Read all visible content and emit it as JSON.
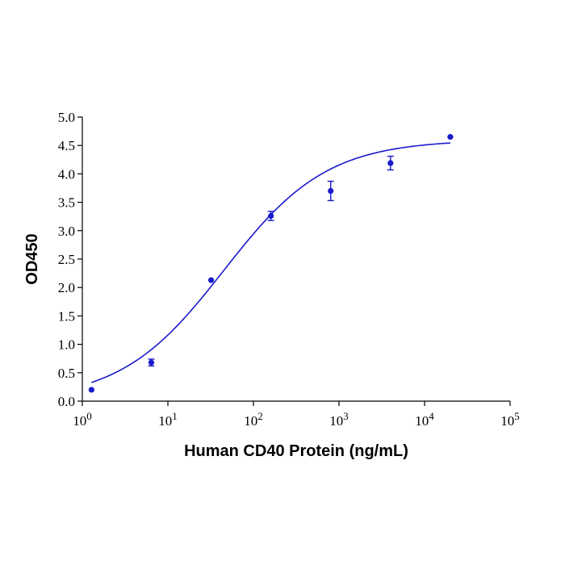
{
  "chart_data": {
    "type": "scatter",
    "xlabel": "Human CD40 Protein (ng/mL)",
    "ylabel": "OD450",
    "xscale": "log",
    "xlim": [
      1,
      100000
    ],
    "ylim": [
      0,
      5.0
    ],
    "x_ticks": [
      {
        "value": 1,
        "base": "10",
        "exp": "0"
      },
      {
        "value": 10,
        "base": "10",
        "exp": "1"
      },
      {
        "value": 100,
        "base": "10",
        "exp": "2"
      },
      {
        "value": 1000,
        "base": "10",
        "exp": "3"
      },
      {
        "value": 10000,
        "base": "10",
        "exp": "4"
      },
      {
        "value": 100000,
        "base": "10",
        "exp": "5"
      }
    ],
    "y_ticks": [
      {
        "value": 0,
        "label": "0.0"
      },
      {
        "value": 0.5,
        "label": "0.5"
      },
      {
        "value": 1.0,
        "label": "1.0"
      },
      {
        "value": 1.5,
        "label": "1.5"
      },
      {
        "value": 2.0,
        "label": "2.0"
      },
      {
        "value": 2.5,
        "label": "2.5"
      },
      {
        "value": 3.0,
        "label": "3.0"
      },
      {
        "value": 3.5,
        "label": "3.5"
      },
      {
        "value": 4.0,
        "label": "4.0"
      },
      {
        "value": 4.5,
        "label": "4.5"
      },
      {
        "value": 5.0,
        "label": "5.0"
      }
    ],
    "points": [
      {
        "x": 1.28,
        "y": 0.2,
        "err": 0
      },
      {
        "x": 6.4,
        "y": 0.68,
        "err": 0.06
      },
      {
        "x": 32,
        "y": 2.13,
        "err": 0
      },
      {
        "x": 160,
        "y": 3.26,
        "err": 0.08
      },
      {
        "x": 800,
        "y": 3.7,
        "err": 0.17
      },
      {
        "x": 4000,
        "y": 4.19,
        "err": 0.12
      },
      {
        "x": 20000,
        "y": 4.65,
        "err": 0
      }
    ],
    "fit_curve": {
      "bottom": 0.0,
      "top": 4.6,
      "ec50": 45,
      "hill": 0.72,
      "x_from": 1.28,
      "x_to": 20000
    },
    "grid": false,
    "color": "#1a1acc"
  }
}
